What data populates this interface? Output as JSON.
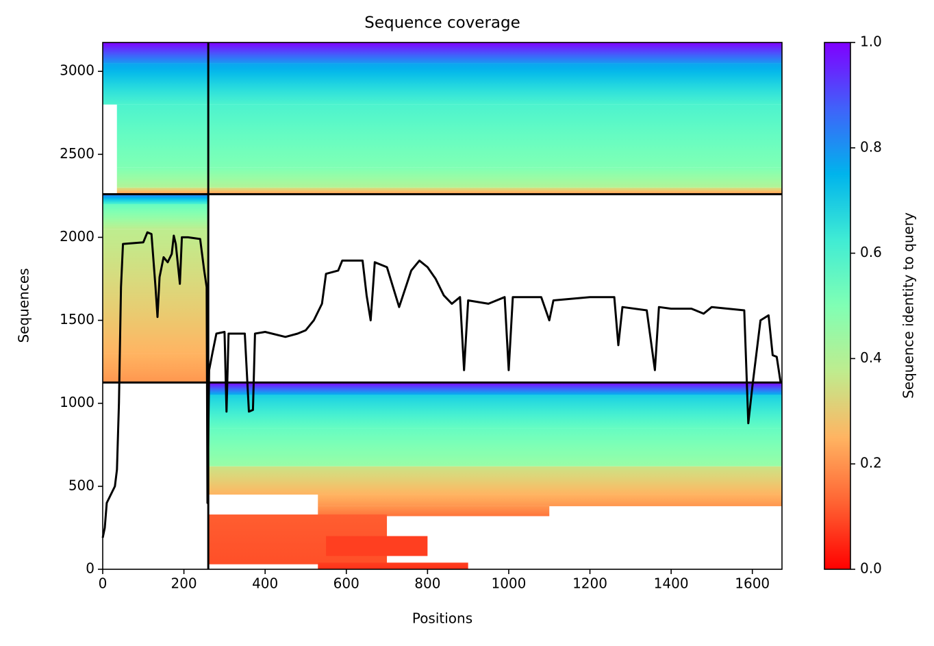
{
  "chart_data": {
    "type": "coverage",
    "title": "Sequence coverage",
    "x_label": "Positions",
    "y_label": "Sequences",
    "colorbar_label": "Sequence identity to query",
    "colormap": "rainbow_r",
    "xlim": [
      0,
      1673
    ],
    "ylim": [
      0,
      3174
    ],
    "xticks": [
      0,
      200,
      400,
      600,
      800,
      1000,
      1200,
      1400,
      1600
    ],
    "yticks": [
      0,
      500,
      1000,
      1500,
      2000,
      2500,
      3000
    ],
    "clim": [
      0,
      1
    ],
    "cticks": [
      {
        "value": 0,
        "label": "0.0"
      },
      0.2,
      0.4,
      0.6,
      0.8,
      {
        "value": 1,
        "label": "1.0"
      }
    ],
    "blocks": [
      {
        "x": [
          35,
          1673
        ],
        "y": [
          2260,
          2300
        ],
        "identity": [
          0.2,
          0.35
        ]
      },
      {
        "x": [
          35,
          1673
        ],
        "y": [
          2300,
          2420
        ],
        "identity": [
          0.4,
          0.5
        ]
      },
      {
        "x": [
          35,
          1673
        ],
        "y": [
          2420,
          2800
        ],
        "identity": [
          0.5,
          0.6
        ]
      },
      {
        "x": [
          0,
          1673
        ],
        "y": [
          2800,
          3050
        ],
        "identity": [
          0.6,
          0.78
        ]
      },
      {
        "x": [
          0,
          1673
        ],
        "y": [
          3050,
          3174
        ],
        "identity": [
          0.8,
          1.0
        ]
      },
      {
        "x": [
          0,
          260
        ],
        "y": [
          1125,
          1300
        ],
        "identity": [
          0.2,
          0.25
        ]
      },
      {
        "x": [
          0,
          260
        ],
        "y": [
          1300,
          2050
        ],
        "identity": [
          0.25,
          0.38
        ]
      },
      {
        "x": [
          0,
          260
        ],
        "y": [
          2050,
          2200
        ],
        "identity": [
          0.38,
          0.55
        ]
      },
      {
        "x": [
          0,
          260
        ],
        "y": [
          2200,
          2260
        ],
        "identity": [
          0.6,
          0.85
        ]
      },
      {
        "x": [
          260,
          1673
        ],
        "y": [
          1050,
          1125
        ],
        "identity": [
          0.75,
          1.0
        ]
      },
      {
        "x": [
          260,
          1673
        ],
        "y": [
          850,
          1050
        ],
        "identity": [
          0.55,
          0.7
        ]
      },
      {
        "x": [
          260,
          1673
        ],
        "y": [
          620,
          850
        ],
        "identity": [
          0.45,
          0.55
        ]
      },
      {
        "x": [
          260,
          1673
        ],
        "y": [
          450,
          620
        ],
        "identity": [
          0.25,
          0.35
        ]
      },
      {
        "x": [
          530,
          1673
        ],
        "y": [
          380,
          450
        ],
        "identity": [
          0.2,
          0.25
        ]
      },
      {
        "x": [
          530,
          1100
        ],
        "y": [
          320,
          380
        ],
        "identity": [
          0.15,
          0.2
        ]
      },
      {
        "x": [
          260,
          700
        ],
        "y": [
          30,
          330
        ],
        "identity": [
          0.1,
          0.12
        ]
      },
      {
        "x": [
          550,
          800
        ],
        "y": [
          80,
          200
        ],
        "identity": [
          0.08,
          0.08
        ]
      },
      {
        "x": [
          530,
          900
        ],
        "y": [
          0,
          40
        ],
        "identity": [
          0.06,
          0.08
        ]
      }
    ],
    "separators": {
      "x": [
        260
      ],
      "y": [
        1125,
        2260
      ]
    },
    "coverage": {
      "color": "#000000",
      "x": [
        0,
        5,
        10,
        30,
        35,
        40,
        45,
        50,
        100,
        110,
        120,
        130,
        135,
        140,
        150,
        160,
        170,
        175,
        180,
        190,
        195,
        210,
        240,
        250,
        256,
        258,
        262,
        270,
        280,
        300,
        305,
        310,
        350,
        360,
        370,
        375,
        400,
        450,
        480,
        500,
        520,
        540,
        550,
        580,
        590,
        640,
        650,
        660,
        670,
        700,
        730,
        760,
        780,
        800,
        820,
        840,
        860,
        880,
        890,
        900,
        950,
        990,
        1000,
        1010,
        1080,
        1100,
        1110,
        1200,
        1260,
        1270,
        1280,
        1340,
        1360,
        1370,
        1400,
        1450,
        1480,
        1500,
        1580,
        1590,
        1600,
        1620,
        1640,
        1650,
        1660,
        1670
      ],
      "y": [
        190,
        250,
        400,
        500,
        600,
        1000,
        1700,
        1960,
        1970,
        2030,
        2020,
        1700,
        1520,
        1760,
        1880,
        1850,
        1900,
        2010,
        1960,
        1720,
        2000,
        2000,
        1990,
        1800,
        1700,
        400,
        1200,
        1300,
        1420,
        1430,
        950,
        1420,
        1420,
        950,
        960,
        1420,
        1430,
        1400,
        1420,
        1440,
        1500,
        1600,
        1780,
        1800,
        1860,
        1860,
        1650,
        1500,
        1850,
        1820,
        1580,
        1800,
        1860,
        1820,
        1750,
        1650,
        1600,
        1640,
        1200,
        1620,
        1600,
        1640,
        1200,
        1640,
        1640,
        1500,
        1620,
        1640,
        1640,
        1350,
        1580,
        1560,
        1200,
        1580,
        1570,
        1570,
        1540,
        1580,
        1560,
        880,
        1100,
        1500,
        1530,
        1290,
        1280,
        1120
      ]
    }
  }
}
